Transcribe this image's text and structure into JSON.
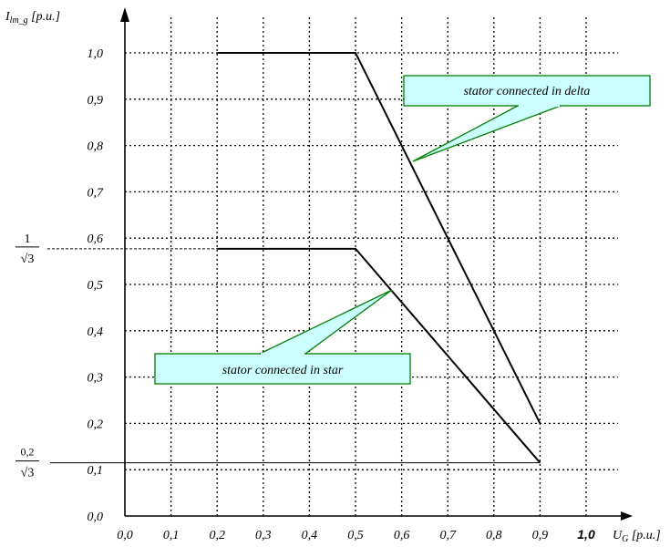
{
  "chart_data": {
    "type": "line",
    "title": "",
    "xlabel": {
      "main": "U",
      "sub": "G",
      "unit": "[p.u.]"
    },
    "ylabel": {
      "main": "I",
      "sub": "lm_g",
      "unit": "[p.u.]"
    },
    "xlim": [
      0,
      1.0
    ],
    "ylim": [
      0,
      1.0
    ],
    "grid": true,
    "x_ticks": [
      "0,0",
      "0,1",
      "0,2",
      "0,3",
      "0,4",
      "0,5",
      "0,6",
      "0,7",
      "0,8",
      "0,9",
      "1,0"
    ],
    "y_ticks": [
      "0,0",
      "0,1",
      "0,2",
      "0,3",
      "0,4",
      "0,5",
      "0,6",
      "0,7",
      "0,8",
      "0,9",
      "1,0"
    ],
    "y_markers": [
      {
        "value": 0.577,
        "numerator": "1",
        "denominator": "√3"
      },
      {
        "value": 0.115,
        "numerator": "0,2",
        "denominator": "√3"
      }
    ],
    "series": [
      {
        "name": "stator connected in delta",
        "points": [
          [
            0.2,
            1.0
          ],
          [
            0.5,
            1.0
          ],
          [
            0.9,
            0.2
          ]
        ]
      },
      {
        "name": "stator connected in star",
        "points": [
          [
            0.2,
            0.577
          ],
          [
            0.5,
            0.577
          ],
          [
            0.9,
            0.115
          ]
        ]
      }
    ],
    "colors": {
      "callout_fill": "#ccffff",
      "callout_border": "#008000",
      "line": "#000000"
    }
  }
}
